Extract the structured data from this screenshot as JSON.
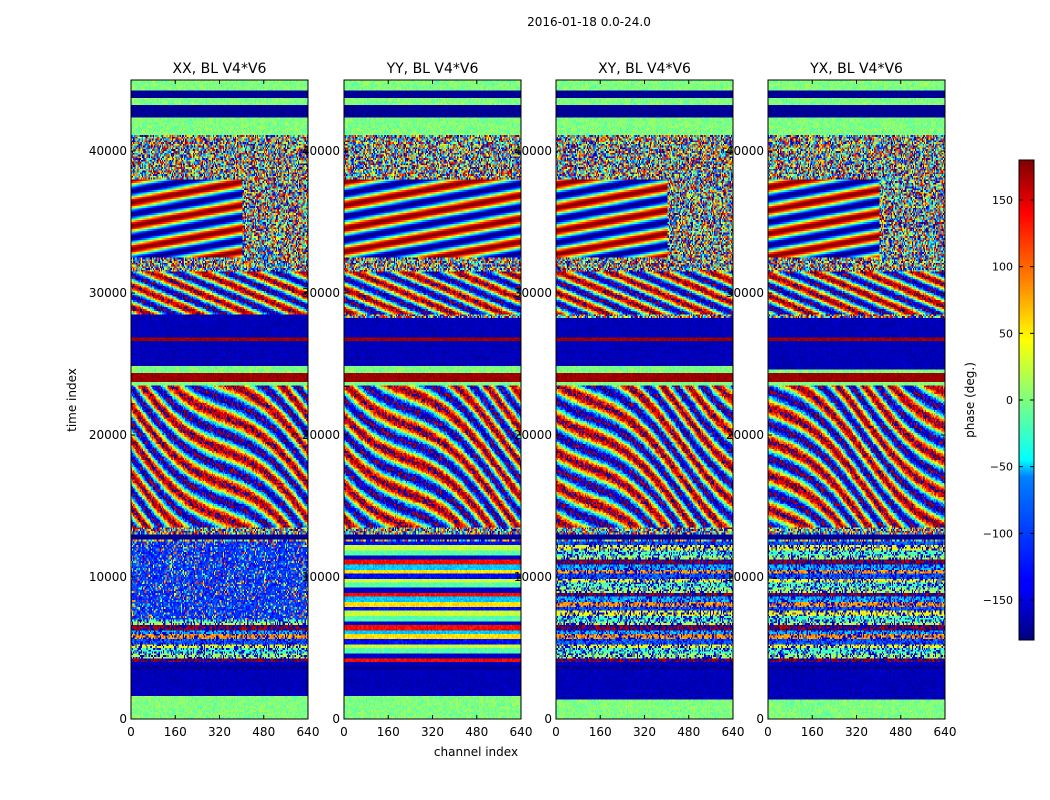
{
  "chart_data": {
    "type": "heatmap",
    "suptitle": "2016-01-18 0.0-24.0",
    "xlabel": "channel index",
    "ylabel": "time index",
    "xlim": [
      0,
      640
    ],
    "ylim": [
      0,
      45000
    ],
    "xticks": [
      0,
      160,
      320,
      480,
      640
    ],
    "yticks": [
      0,
      10000,
      20000,
      30000,
      40000
    ],
    "xtick_labels": [
      "0",
      "160",
      "320",
      "480",
      "640"
    ],
    "ytick_labels": [
      "0",
      "10000",
      "20000",
      "30000",
      "40000"
    ],
    "colormap": "jet",
    "colorbar": {
      "label": "phase (deg.)",
      "range": [
        -180,
        180
      ],
      "ticks": [
        -150,
        -100,
        -50,
        0,
        50,
        100,
        150
      ],
      "tick_labels": [
        "−150",
        "−100",
        "−50",
        "0",
        "50",
        "100",
        "150"
      ]
    },
    "panels": [
      {
        "title": "XX, BL V4*V6"
      },
      {
        "title": "YY, BL V4*V6"
      },
      {
        "title": "XY, BL V4*V6"
      },
      {
        "title": "YX, BL V4*V6"
      }
    ],
    "colors": {
      "jet_dark_blue": "#00007f",
      "jet_blue": "#0000ff",
      "jet_cyan": "#00ffff",
      "jet_green": "#7fff7f",
      "jet_yellow": "#ffff00",
      "jet_red": "#ff0000",
      "jet_dark_red": "#7f0000"
    }
  }
}
